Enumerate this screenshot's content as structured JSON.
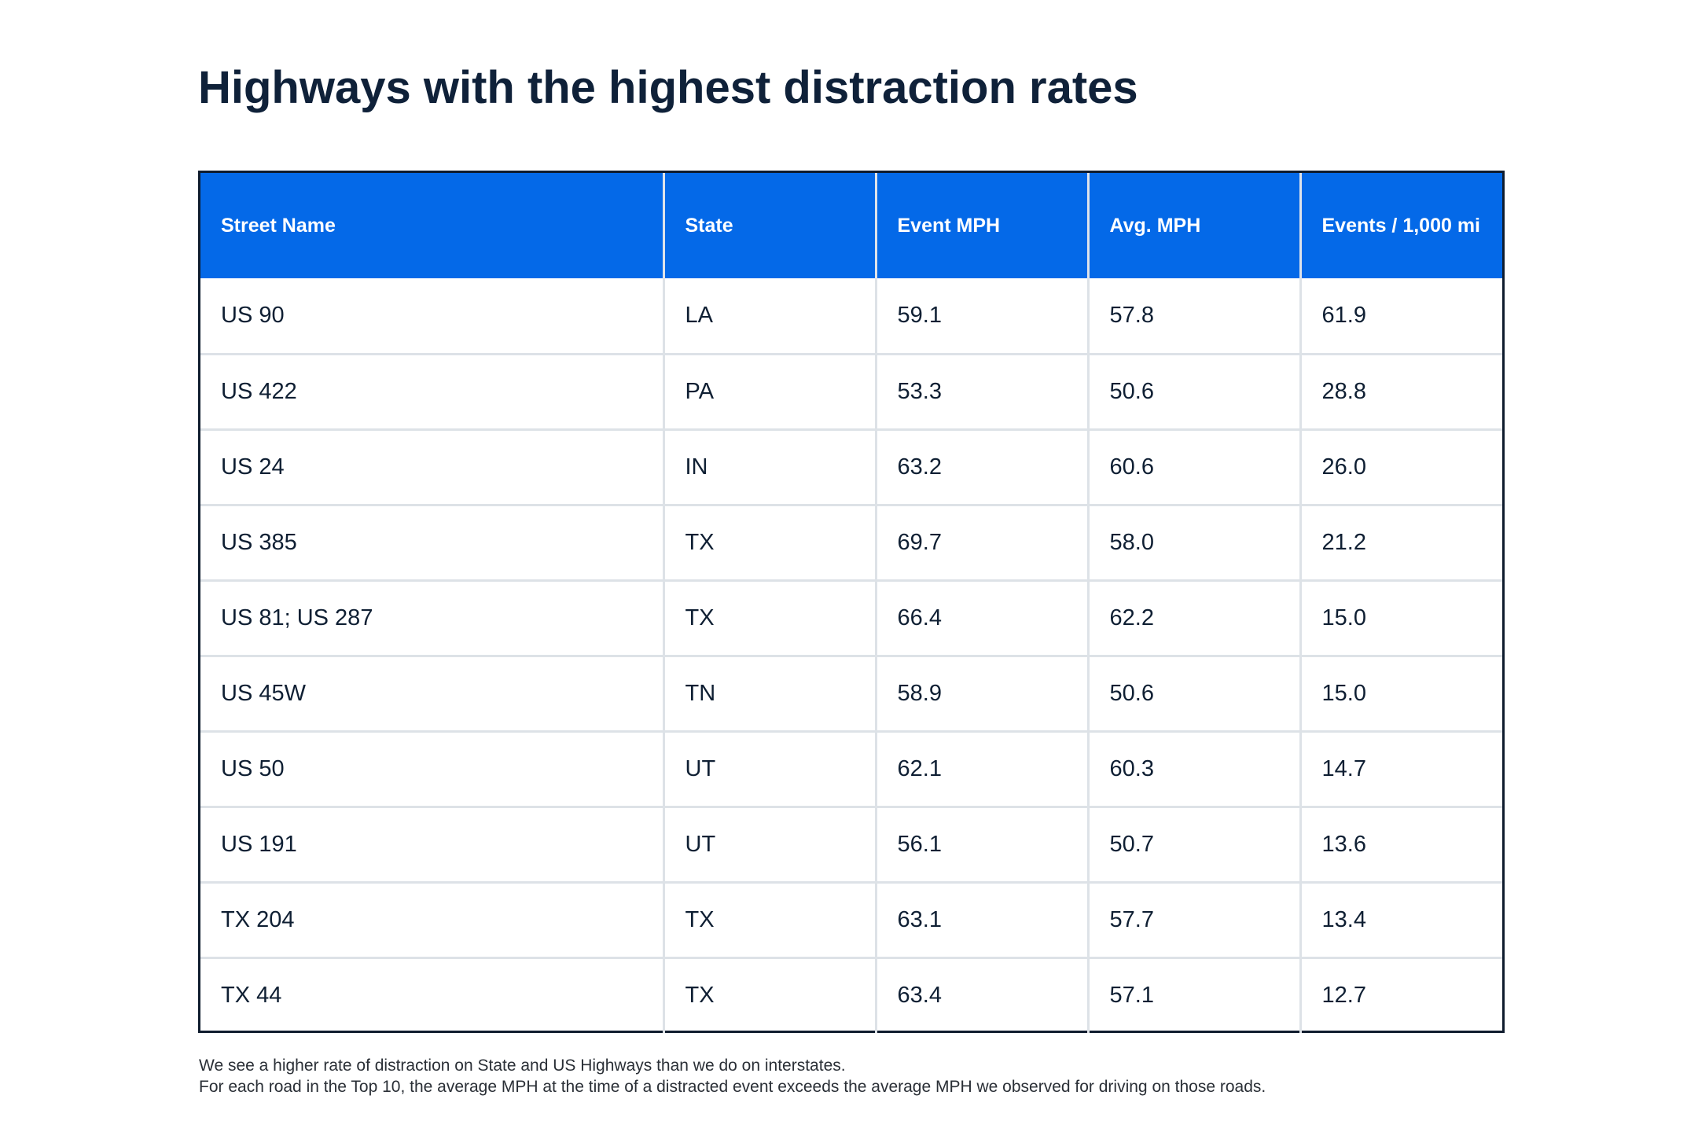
{
  "chart_data": {
    "type": "table",
    "title": "Highways with the highest distraction rates",
    "columns": [
      "Street Name",
      "State",
      "Event MPH",
      "Avg. MPH",
      "Events / 1,000 mi"
    ],
    "rows": [
      [
        "US 90",
        "LA",
        "59.1",
        "57.8",
        "61.9"
      ],
      [
        "US 422",
        "PA",
        "53.3",
        "50.6",
        "28.8"
      ],
      [
        "US 24",
        "IN",
        "63.2",
        "60.6",
        "26.0"
      ],
      [
        "US 385",
        "TX",
        "69.7",
        "58.0",
        "21.2"
      ],
      [
        "US 81; US 287",
        "TX",
        "66.4",
        "62.2",
        "15.0"
      ],
      [
        "US 45W",
        "TN",
        "58.9",
        "50.6",
        "15.0"
      ],
      [
        "US 50",
        "UT",
        "62.1",
        "60.3",
        "14.7"
      ],
      [
        "US 191",
        "UT",
        "56.1",
        "50.7",
        "13.6"
      ],
      [
        "TX 204",
        "TX",
        "63.1",
        "57.7",
        "13.4"
      ],
      [
        "TX 44",
        "TX",
        "63.4",
        "57.1",
        "12.7"
      ]
    ],
    "notes": [
      "We see a higher rate of distraction on State and US Highways than we do on interstates.",
      "For each road in the Top 10, the average MPH at the time of a distracted event exceeds the average MPH we observed for driving on those roads."
    ]
  },
  "colors": {
    "header_bg": "#0469e8",
    "header_text": "#ffffff",
    "title": "#0f2139",
    "grid": "#dde2e7",
    "outer_border": "#0f1c2e"
  }
}
